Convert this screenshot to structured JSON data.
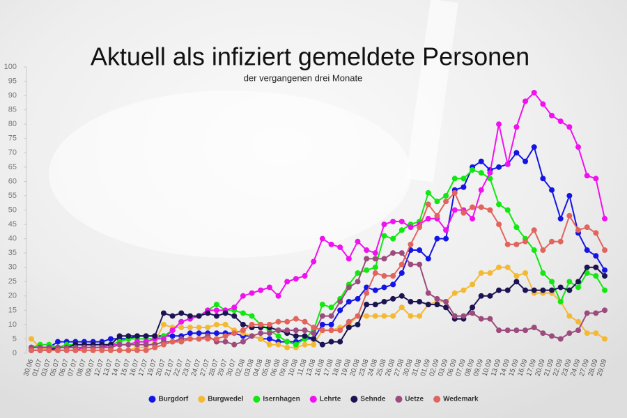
{
  "chart_data": {
    "type": "line",
    "title": "Aktuell als infiziert gemeldete Personen",
    "subtitle": "der vergangenen drei Monate",
    "categories": [
      "30.06",
      "01.07",
      "03.07",
      "05.07",
      "06.07",
      "07.07",
      "08.07",
      "09.07",
      "12.07",
      "13.07",
      "14.07",
      "15.07",
      "16.07",
      "17.07",
      "19.07",
      "20.07",
      "21.07",
      "22.07",
      "23.07",
      "24.07",
      "27.07",
      "28.07",
      "29.07",
      "30.07",
      "02.08",
      "03.08",
      "04.08",
      "05.08",
      "06.08",
      "09.08",
      "10.08",
      "11.08",
      "13.08",
      "16.08",
      "17.08",
      "18.08",
      "19.08",
      "20.08",
      "23.08",
      "24.08",
      "25.08",
      "26.08",
      "27.08",
      "30.08",
      "31.08",
      "01.09",
      "02.09",
      "03.09",
      "06.09",
      "07.09",
      "08.09",
      "09.09",
      "10.09",
      "13.09",
      "14.09",
      "15.09",
      "16.09",
      "17.09",
      "20.09",
      "21.09",
      "22.09",
      "23.09",
      "24.09",
      "27.09",
      "28.09",
      "29.09"
    ],
    "ylim": [
      0,
      100
    ],
    "yticks": [
      0,
      5,
      10,
      15,
      20,
      25,
      30,
      35,
      40,
      45,
      50,
      55,
      60,
      65,
      70,
      75,
      80,
      85,
      90,
      95,
      100
    ],
    "grid": false,
    "legend": "bottom",
    "series": [
      {
        "name": "Burgdorf",
        "color": "#1414e6",
        "values": [
          2,
          2,
          2,
          4,
          4,
          4,
          4,
          4,
          4,
          5,
          5,
          5,
          6,
          6,
          6,
          6,
          6,
          6,
          7,
          7,
          7,
          7,
          7,
          7,
          6,
          6,
          5,
          5,
          4,
          4,
          4,
          5,
          5,
          10,
          10,
          15,
          18,
          19,
          23,
          22,
          23,
          24,
          28,
          36,
          36,
          33,
          40,
          40,
          57,
          58,
          65,
          67,
          64,
          65,
          66,
          70,
          67,
          72,
          61,
          57,
          47,
          55,
          42,
          36,
          34,
          29
        ]
      },
      {
        "name": "Burgwedel",
        "color": "#f4b933",
        "values": [
          5,
          2,
          1,
          1,
          1,
          1,
          1,
          1,
          1,
          1,
          1,
          1,
          2,
          2,
          4,
          10,
          9,
          9,
          9,
          9,
          9,
          10,
          10,
          8,
          7,
          6,
          5,
          3,
          3,
          2,
          2,
          3,
          3,
          8,
          8,
          9,
          10,
          13,
          13,
          13,
          13,
          13,
          16,
          13,
          13,
          17,
          18,
          18,
          21,
          22,
          24,
          28,
          28,
          30,
          30,
          27,
          28,
          21,
          21,
          21,
          18,
          13,
          11,
          7,
          7,
          5
        ]
      },
      {
        "name": "Isernhagen",
        "color": "#10e810",
        "values": [
          2,
          3,
          3,
          2,
          3,
          3,
          3,
          3,
          3,
          3,
          4,
          5,
          5,
          5,
          5,
          6,
          8,
          11,
          12,
          13,
          15,
          17,
          15,
          15,
          14,
          13,
          10,
          8,
          6,
          4,
          3,
          5,
          8,
          17,
          16,
          19,
          24,
          28,
          29,
          30,
          41,
          40,
          43,
          45,
          46,
          56,
          53,
          55,
          61,
          61,
          64,
          63,
          61,
          52,
          50,
          44,
          40,
          36,
          28,
          25,
          18,
          25,
          23,
          28,
          27,
          22
        ]
      },
      {
        "name": "Lehrte",
        "color": "#f010f0",
        "values": [
          2,
          2,
          2,
          1,
          1,
          1,
          2,
          2,
          2,
          3,
          3,
          3,
          4,
          4,
          5,
          5,
          8,
          11,
          12,
          13,
          15,
          15,
          15,
          16,
          20,
          21,
          22,
          23,
          20,
          25,
          26,
          27,
          32,
          40,
          38,
          37,
          33,
          39,
          36,
          35,
          45,
          46,
          46,
          44,
          45,
          47,
          47,
          43,
          50,
          50,
          47,
          57,
          63,
          80,
          66,
          79,
          88,
          91,
          87,
          83,
          81,
          79,
          72,
          62,
          61,
          47
        ]
      },
      {
        "name": "Sehnde",
        "color": "#1c1452",
        "values": [
          1,
          1,
          1,
          2,
          2,
          3,
          3,
          3,
          3,
          3,
          6,
          6,
          6,
          6,
          6,
          14,
          13,
          14,
          13,
          13,
          14,
          13,
          14,
          13,
          10,
          9,
          9,
          9,
          8,
          7,
          6,
          6,
          5,
          3,
          4,
          4,
          9,
          10,
          17,
          17,
          18,
          19,
          20,
          18,
          18,
          17,
          17,
          16,
          12,
          12,
          16,
          20,
          20,
          22,
          22,
          25,
          22,
          22,
          22,
          22,
          23,
          22,
          25,
          30,
          30,
          27
        ]
      },
      {
        "name": "Uetze",
        "color": "#9c4b7c",
        "values": [
          2,
          2,
          2,
          2,
          2,
          2,
          2,
          2,
          2,
          2,
          3,
          3,
          3,
          3,
          3,
          4,
          4,
          5,
          5,
          5,
          6,
          4,
          4,
          3,
          4,
          6,
          7,
          7,
          8,
          8,
          8,
          8,
          7,
          13,
          13,
          18,
          23,
          25,
          33,
          33,
          33,
          35,
          35,
          31,
          31,
          21,
          19,
          18,
          13,
          13,
          14,
          12,
          12,
          8,
          8,
          8,
          8,
          9,
          7,
          6,
          5,
          7,
          8,
          14,
          14,
          15
        ]
      },
      {
        "name": "Wedemark",
        "color": "#e2645c",
        "values": [
          1,
          1,
          1,
          1,
          1,
          1,
          1,
          1,
          1,
          1,
          1,
          1,
          1,
          1,
          2,
          3,
          4,
          4,
          5,
          5,
          5,
          5,
          6,
          7,
          8,
          10,
          10,
          10,
          11,
          11,
          12,
          11,
          9,
          8,
          8,
          8,
          11,
          13,
          21,
          28,
          27,
          27,
          31,
          38,
          44,
          52,
          48,
          53,
          56,
          49,
          51,
          51,
          50,
          45,
          38,
          38,
          39,
          43,
          36,
          39,
          39,
          48,
          43,
          44,
          42,
          36
        ]
      }
    ]
  }
}
